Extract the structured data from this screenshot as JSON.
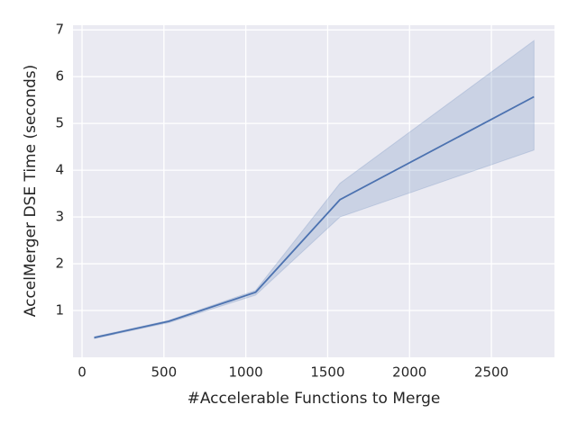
{
  "chart_data": {
    "type": "line",
    "xlabel": "#Accelerable Functions to Merge",
    "ylabel": "AccelMerger DSE Time (seconds)",
    "x": [
      75,
      530,
      1060,
      1575,
      2760
    ],
    "values": [
      0.42,
      0.77,
      1.39,
      3.37,
      5.57
    ],
    "lower": [
      0.4,
      0.74,
      1.33,
      3.0,
      4.43
    ],
    "upper": [
      0.44,
      0.79,
      1.43,
      3.72,
      6.77
    ],
    "color": "#4c72b0",
    "xlim": [
      -55,
      2885
    ],
    "xticks": [
      0,
      500,
      1000,
      1500,
      2000,
      2500
    ],
    "ylim": [
      0,
      7.1
    ],
    "yticks": [
      1,
      2,
      3,
      4,
      5,
      6,
      7
    ],
    "grid": true
  }
}
